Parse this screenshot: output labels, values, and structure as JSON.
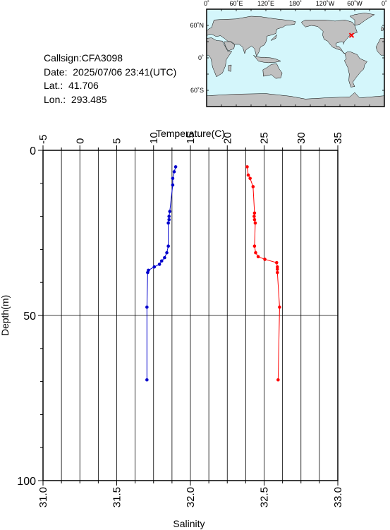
{
  "info": {
    "callsign_label": "Callsign:CFA3098",
    "date_label": "Date:  2025/07/06 23:41(UTC)",
    "lat_label": "Lat.:  41.706",
    "lon_label": "Lon.:  293.485"
  },
  "map": {
    "lon_ticks": [
      "0˚",
      "60˚E",
      "120˚E",
      "180˚",
      "120˚W",
      "60˚W",
      "0˚"
    ],
    "lat_ticks": [
      "60˚N",
      "0˚",
      "60˚S"
    ],
    "ocean_color": "#d4f6fb",
    "land_color": "#c0c0c0",
    "marker": {
      "lat": 41.706,
      "lon": 293.485,
      "color": "#ff0000"
    }
  },
  "chart_data": {
    "type": "line",
    "top_axis": {
      "label": "Temperature(C)",
      "range": [
        -5,
        35
      ],
      "ticks": [
        "-5",
        "0",
        "5",
        "10",
        "15",
        "20",
        "25",
        "30",
        "35"
      ]
    },
    "bottom_axis": {
      "label": "Salinity",
      "range": [
        31.0,
        33.0
      ],
      "ticks": [
        "31.0",
        "31.5",
        "32.0",
        "32.5",
        "33.0"
      ]
    },
    "left_axis": {
      "label": "Depth(m)",
      "range": [
        0,
        100
      ],
      "inverted": true,
      "ticks": [
        "0",
        "50",
        "100"
      ]
    },
    "grid": true,
    "series": [
      {
        "axis": "salinity",
        "color": "#0000cc",
        "points": [
          {
            "x": 31.9,
            "depth": 5
          },
          {
            "x": 31.89,
            "depth": 6.5
          },
          {
            "x": 31.88,
            "depth": 8.5
          },
          {
            "x": 31.88,
            "depth": 10.5
          },
          {
            "x": 31.86,
            "depth": 18.5
          },
          {
            "x": 31.855,
            "depth": 20
          },
          {
            "x": 31.855,
            "depth": 21
          },
          {
            "x": 31.85,
            "depth": 22
          },
          {
            "x": 31.85,
            "depth": 29
          },
          {
            "x": 31.84,
            "depth": 31
          },
          {
            "x": 31.825,
            "depth": 32.5
          },
          {
            "x": 31.805,
            "depth": 33.5
          },
          {
            "x": 31.79,
            "depth": 34.5
          },
          {
            "x": 31.755,
            "depth": 35.3
          },
          {
            "x": 31.715,
            "depth": 36.3
          },
          {
            "x": 31.71,
            "depth": 37
          },
          {
            "x": 31.705,
            "depth": 47.5
          },
          {
            "x": 31.705,
            "depth": 69.5
          }
        ]
      },
      {
        "axis": "temperature",
        "color": "#ff0000",
        "points": [
          {
            "x": 22.7,
            "depth": 5
          },
          {
            "x": 22.85,
            "depth": 7.5
          },
          {
            "x": 23.1,
            "depth": 8.5
          },
          {
            "x": 23.5,
            "depth": 11
          },
          {
            "x": 23.7,
            "depth": 19
          },
          {
            "x": 23.65,
            "depth": 20
          },
          {
            "x": 23.7,
            "depth": 21
          },
          {
            "x": 23.8,
            "depth": 22
          },
          {
            "x": 23.7,
            "depth": 29
          },
          {
            "x": 23.85,
            "depth": 31
          },
          {
            "x": 24.2,
            "depth": 32.2
          },
          {
            "x": 25.1,
            "depth": 33
          },
          {
            "x": 26.7,
            "depth": 34
          },
          {
            "x": 26.8,
            "depth": 35.3
          },
          {
            "x": 26.8,
            "depth": 36
          },
          {
            "x": 26.8,
            "depth": 37
          },
          {
            "x": 27.1,
            "depth": 47.5
          },
          {
            "x": 26.9,
            "depth": 69.5
          }
        ]
      }
    ]
  }
}
